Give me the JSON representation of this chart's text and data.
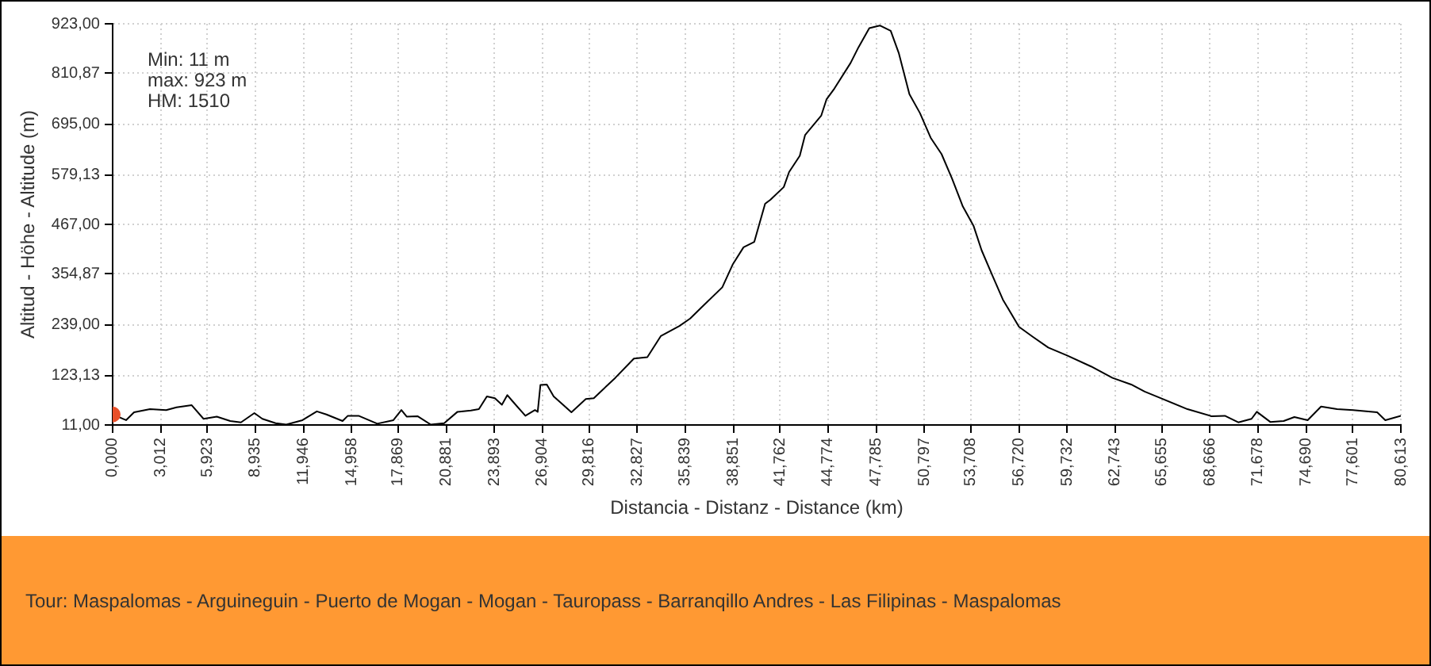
{
  "chart_data": {
    "type": "line",
    "xlabel": "Distancia - Distanz - Distance (km)",
    "ylabel": "Altitud - Höhe - Altitude (m)",
    "annotations": [
      "Min: 11 m",
      "max: 923 m",
      "HM: 1510",
      "Tour: Maspalomas - Arguineguin - Puerto de Mogan - Mogan - Tauropass - Barranqillo Andres - Las Filipinas - Maspalomas"
    ],
    "series": [
      {
        "type": "line",
        "color": "#000000",
        "x": [
          0,
          0.84,
          1.34,
          2.34,
          3.35,
          4.0,
          4.95,
          5.69,
          6.52,
          7.36,
          8.03,
          8.87,
          9.37,
          10.2,
          10.87,
          11.88,
          12.78,
          13.38,
          14.39,
          14.72,
          15.39,
          16.56,
          17.57,
          18.07,
          18.4,
          19.08,
          19.91,
          20.75,
          21.58,
          22.42,
          22.92,
          23.42,
          23.92,
          24.36,
          24.7,
          25.1,
          25.83,
          26.43,
          26.6,
          26.77,
          27.17,
          27.6,
          28.71,
          29.61,
          30.11,
          31.45,
          32.62,
          33.46,
          34.3,
          35.47,
          36.14,
          36.81,
          38.15,
          38.82,
          39.48,
          40.15,
          40.83,
          41.16,
          42.0,
          42.33,
          43.0,
          43.33,
          44.34,
          44.67,
          45.17,
          46.18,
          46.68,
          47.35,
          48.01,
          48.69,
          49.19,
          49.86,
          50.52,
          51.19,
          51.87,
          52.53,
          53.2,
          53.87,
          54.38,
          55.04,
          55.71,
          56.72,
          57.56,
          58.55,
          59.73,
          61.23,
          62.57,
          63.74,
          64.58,
          65.58,
          67.26,
          68.76,
          69.6,
          70.44,
          71.27,
          71.6,
          72.44,
          73.28,
          73.95,
          74.78,
          75.62,
          76.62,
          77.63,
          79.13,
          79.64,
          80.613
        ],
        "values": [
          35,
          22,
          40,
          47,
          45,
          51,
          56,
          25,
          30,
          20,
          17,
          38,
          25,
          15,
          12,
          22,
          42,
          35,
          20,
          32,
          32,
          14,
          22,
          45,
          30,
          31,
          12,
          15,
          41,
          44,
          47,
          76,
          72,
          57,
          79,
          62,
          32,
          45,
          41,
          102,
          103,
          76,
          40,
          70,
          72,
          118,
          162,
          165,
          213,
          236,
          253,
          277,
          324,
          377,
          415,
          427,
          514,
          523,
          552,
          586,
          623,
          670,
          714,
          751,
          776,
          834,
          870,
          913,
          919,
          907,
          857,
          763,
          720,
          664,
          627,
          571,
          508,
          464,
          408,
          352,
          296,
          234,
          212,
          187,
          169,
          144,
          118,
          103,
          87,
          72,
          47,
          31,
          32,
          17,
          25,
          41,
          18,
          20,
          29,
          22,
          53,
          47,
          45,
          40,
          22,
          32
        ]
      },
      {
        "type": "scatter",
        "color": "#e8502a",
        "x": [
          0
        ],
        "values": [
          35
        ]
      }
    ],
    "xlim": [
      0,
      80.613
    ],
    "xticks": [
      {
        "value": 0,
        "label": "0,000"
      },
      {
        "value": 3.012,
        "label": "3,012"
      },
      {
        "value": 5.923,
        "label": "5,923"
      },
      {
        "value": 8.935,
        "label": "8,935"
      },
      {
        "value": 11.946,
        "label": "11,946"
      },
      {
        "value": 14.958,
        "label": "14,958"
      },
      {
        "value": 17.869,
        "label": "17,869"
      },
      {
        "value": 20.881,
        "label": "20,881"
      },
      {
        "value": 23.893,
        "label": "23,893"
      },
      {
        "value": 26.904,
        "label": "26,904"
      },
      {
        "value": 29.816,
        "label": "29,816"
      },
      {
        "value": 32.827,
        "label": "32,827"
      },
      {
        "value": 35.839,
        "label": "35,839"
      },
      {
        "value": 38.851,
        "label": "38,851"
      },
      {
        "value": 41.762,
        "label": "41,762"
      },
      {
        "value": 44.774,
        "label": "44,774"
      },
      {
        "value": 47.785,
        "label": "47,785"
      },
      {
        "value": 50.797,
        "label": "50,797"
      },
      {
        "value": 53.708,
        "label": "53,708"
      },
      {
        "value": 56.72,
        "label": "56,720"
      },
      {
        "value": 59.732,
        "label": "59,732"
      },
      {
        "value": 62.743,
        "label": "62,743"
      },
      {
        "value": 65.655,
        "label": "65,655"
      },
      {
        "value": 68.666,
        "label": "68,666"
      },
      {
        "value": 71.678,
        "label": "71,678"
      },
      {
        "value": 74.69,
        "label": "74,690"
      },
      {
        "value": 77.601,
        "label": "77,601"
      },
      {
        "value": 80.613,
        "label": "80,613"
      }
    ],
    "ylim": [
      11,
      923
    ],
    "yticks": [
      {
        "value": 11,
        "label": "11,00"
      },
      {
        "value": 123.13,
        "label": "123,13"
      },
      {
        "value": 239,
        "label": "239,00"
      },
      {
        "value": 354.87,
        "label": "354,87"
      },
      {
        "value": 467,
        "label": "467,00"
      },
      {
        "value": 579.13,
        "label": "579,13"
      },
      {
        "value": 695,
        "label": "695,00"
      },
      {
        "value": 810.87,
        "label": "810,87"
      },
      {
        "value": 923,
        "label": "923,00"
      }
    ],
    "grid": true,
    "legend": false
  }
}
